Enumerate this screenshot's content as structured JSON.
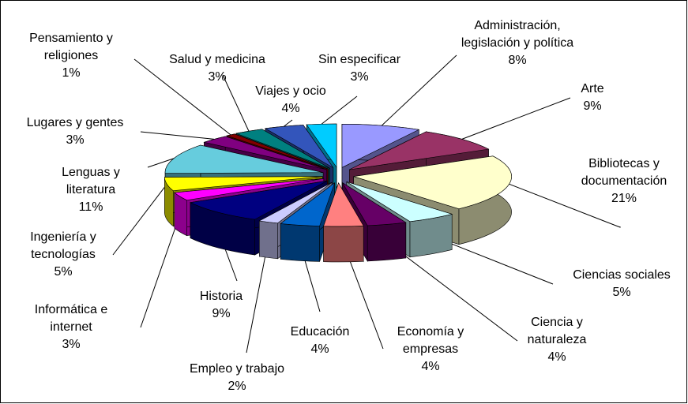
{
  "chart_data": {
    "type": "pie",
    "categories": [
      "Administración, legislación y política",
      "Arte",
      "Bibliotecas y documentación",
      "Ciencias sociales",
      "Ciencia y naturaleza",
      "Economía y empresas",
      "Educación",
      "Empleo y trabajo",
      "Historia",
      "Informática e internet",
      "Ingeniería y tecnologías",
      "Lenguas y literatura",
      "Lugares y gentes",
      "Pensamiento y religiones",
      "Salud y medicina",
      "Viajes y ocio",
      "Sin especificar"
    ],
    "values": [
      8,
      9,
      21,
      5,
      4,
      4,
      4,
      2,
      9,
      3,
      5,
      11,
      3,
      1,
      3,
      4,
      3
    ],
    "value_labels": [
      "8%",
      "9%",
      "21%",
      "5%",
      "4%",
      "4%",
      "4%",
      "2%",
      "9%",
      "3%",
      "5%",
      "11%",
      "3%",
      "1%",
      "3%",
      "4%",
      "3%"
    ],
    "colors": [
      "#9999FF",
      "#993366",
      "#FFFFCC",
      "#CCFFFF",
      "#660066",
      "#FF8080",
      "#0066CC",
      "#CCCCFF",
      "#000080",
      "#FF00FF",
      "#FFFF00",
      "#66CCDD",
      "#800080",
      "#800000",
      "#008080",
      "#3355BB",
      "#00CCFF"
    ]
  }
}
